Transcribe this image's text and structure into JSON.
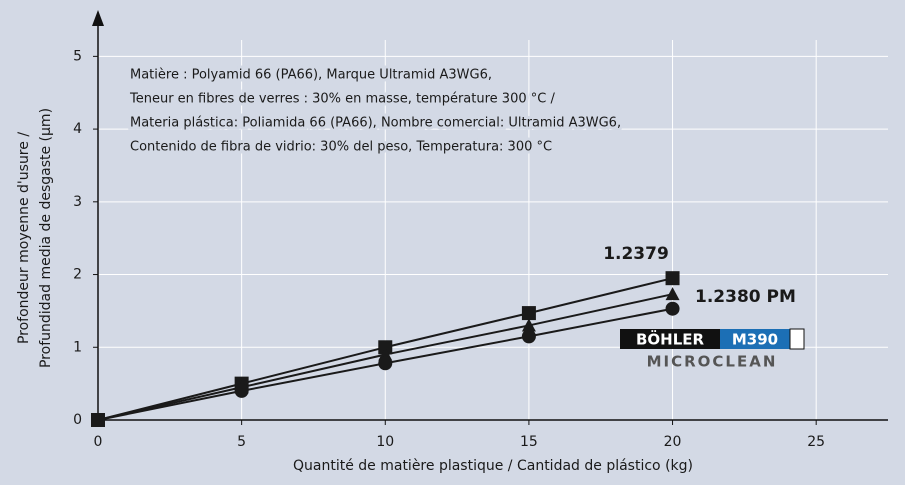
{
  "chart_data": {
    "type": "line",
    "x": [
      0,
      5,
      10,
      15,
      20
    ],
    "xlim": [
      0,
      27.5
    ],
    "ylim": [
      0,
      5.5
    ],
    "xticks": [
      0,
      5,
      10,
      15,
      20,
      25
    ],
    "yticks": [
      0,
      1,
      2,
      3,
      4,
      5
    ],
    "grid": true,
    "xlabel": "Quantité de matière plastique / Cantidad de plástico (kg)",
    "ylabel": [
      "Profondeur moyenne d'usure /",
      "Profundidad media de desgaste (µm)"
    ],
    "annotation": [
      "Matière : Polyamid 66 (PA66), Marque Ultramid A3WG6,",
      "Teneur en fibres de verres : 30% en masse, température 300 °C /",
      "Materia plástica: Poliamida 66 (PA66), Nombre comercial: Ultramid A3WG6,",
      "Contenido de fibra de vidrio: 30% del peso, Temperatura: 300 °C"
    ],
    "logo": {
      "brand": "BÖHLER",
      "sub": "MICROCLEAN"
    },
    "series": [
      {
        "name": "1.2379",
        "color": "#1a1a1a",
        "marker": "square",
        "values": [
          0,
          0.5,
          1.0,
          1.47,
          1.95
        ]
      },
      {
        "name": "1.2380 PM",
        "color": "#1a1a1a",
        "marker": "triangle",
        "values": [
          0,
          0.45,
          0.9,
          1.3,
          1.73
        ]
      },
      {
        "name": "M390",
        "color": "#1a1a1a",
        "marker": "circle",
        "values": [
          0,
          0.4,
          0.78,
          1.15,
          1.53
        ]
      }
    ]
  }
}
